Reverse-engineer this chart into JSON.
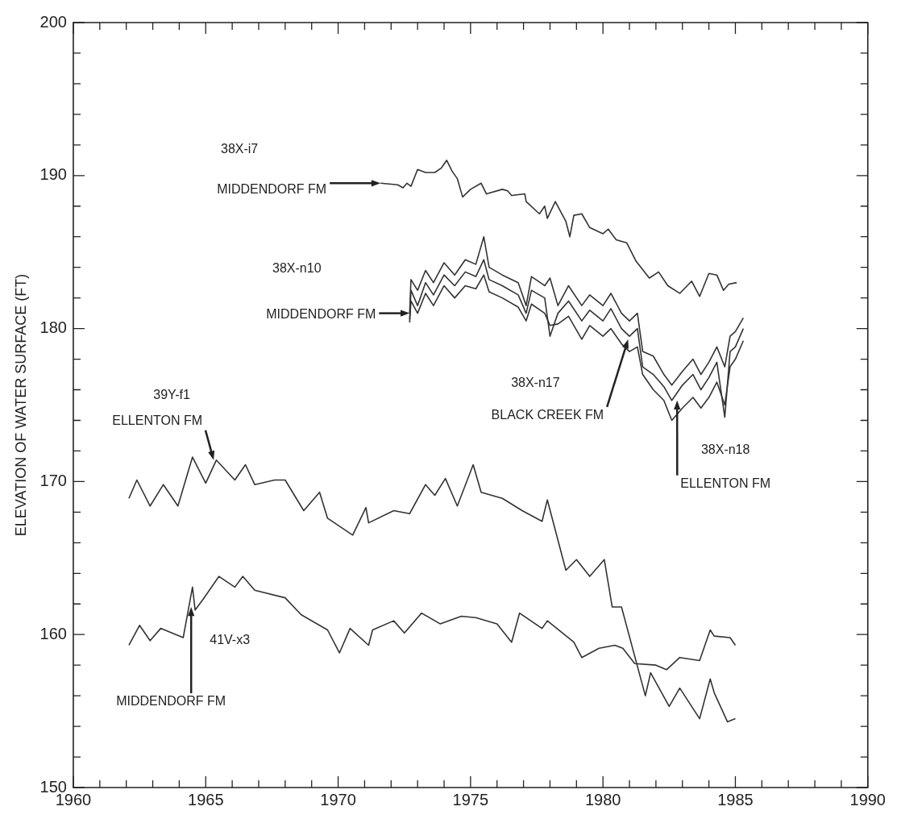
{
  "chart_data": {
    "type": "line",
    "ylabel": "ELEVATION OF WATER SURFACE (FT)",
    "xlim": [
      1960,
      1990
    ],
    "ylim": [
      150,
      200
    ],
    "xticks": [
      1960,
      {
        "value": 1961,
        "label": null
      },
      {
        "value": 1962,
        "label": null
      },
      {
        "value": 1963,
        "label": null
      },
      {
        "value": 1964,
        "label": null
      },
      1965,
      {
        "value": 1966,
        "label": null
      },
      {
        "value": 1967,
        "label": null
      },
      {
        "value": 1968,
        "label": null
      },
      {
        "value": 1969,
        "label": null
      },
      1970,
      {
        "value": 1971,
        "label": null
      },
      {
        "value": 1972,
        "label": null
      },
      {
        "value": 1973,
        "label": null
      },
      {
        "value": 1974,
        "label": null
      },
      1975,
      {
        "value": 1976,
        "label": null
      },
      {
        "value": 1977,
        "label": null
      },
      {
        "value": 1978,
        "label": null
      },
      {
        "value": 1979,
        "label": null
      },
      1980,
      {
        "value": 1981,
        "label": null
      },
      {
        "value": 1982,
        "label": null
      },
      {
        "value": 1983,
        "label": null
      },
      {
        "value": 1984,
        "label": null
      },
      1985,
      {
        "value": 1986,
        "label": null
      },
      {
        "value": 1987,
        "label": null
      },
      {
        "value": 1988,
        "label": null
      },
      {
        "value": 1989,
        "label": null
      },
      1990
    ],
    "yticks": [
      150,
      {
        "value": 152,
        "label": null
      },
      {
        "value": 154,
        "label": null
      },
      {
        "value": 156,
        "label": null
      },
      {
        "value": 158,
        "label": null
      },
      160,
      {
        "value": 162,
        "label": null
      },
      {
        "value": 164,
        "label": null
      },
      {
        "value": 166,
        "label": null
      },
      {
        "value": 168,
        "label": null
      },
      170,
      {
        "value": 172,
        "label": null
      },
      {
        "value": 174,
        "label": null
      },
      {
        "value": 176,
        "label": null
      },
      {
        "value": 178,
        "label": null
      },
      180,
      {
        "value": 182,
        "label": null
      },
      {
        "value": 184,
        "label": null
      },
      {
        "value": 186,
        "label": null
      },
      {
        "value": 188,
        "label": null
      },
      190,
      {
        "value": 192,
        "label": null
      },
      {
        "value": 194,
        "label": null
      },
      {
        "value": 196,
        "label": null
      },
      {
        "value": 198,
        "label": null
      },
      200
    ],
    "grid": false,
    "legend": false,
    "marker": "none",
    "line_style": "solid",
    "series": [
      {
        "color": "#333333",
        "x": [
          1971.6,
          1972.25,
          1972.45,
          1972.6,
          1972.75,
          1973.0,
          1973.3,
          1973.65,
          1973.9,
          1974.1,
          1974.3,
          1974.5,
          1974.7,
          1975.0,
          1975.4,
          1975.6,
          1976.2,
          1976.4,
          1976.55,
          1977.05,
          1977.1,
          1977.6,
          1977.8,
          1977.9,
          1978.2,
          1978.6,
          1978.75,
          1978.9,
          1979.2,
          1979.5,
          1980.0,
          1980.2,
          1980.5,
          1980.9,
          1981.25,
          1981.75,
          1982.1,
          1982.45,
          1982.9,
          1983.35,
          1983.65,
          1984.0,
          1984.3,
          1984.55,
          1984.75,
          1985.05
        ],
        "values": [
          189.5,
          189.4,
          189.2,
          189.5,
          189.3,
          190.4,
          190.2,
          190.2,
          190.5,
          191.0,
          190.3,
          189.8,
          188.6,
          189.1,
          189.5,
          188.8,
          189.1,
          189.0,
          188.7,
          188.8,
          188.3,
          187.5,
          188.0,
          187.2,
          188.3,
          187.0,
          186.0,
          187.4,
          187.5,
          186.6,
          186.2,
          186.5,
          185.8,
          185.6,
          184.4,
          183.3,
          183.7,
          182.8,
          182.3,
          183.1,
          182.1,
          183.6,
          183.5,
          182.5,
          182.9,
          183.0
        ]
      },
      {
        "color": "#333333",
        "x": [
          1972.7,
          1972.75,
          1973.0,
          1973.3,
          1973.6,
          1974.0,
          1974.4,
          1974.8,
          1975.2,
          1975.5,
          1975.7,
          1976.2,
          1976.8,
          1977.1,
          1977.3,
          1977.8,
          1978.0,
          1978.3,
          1978.7,
          1979.2,
          1979.5,
          1980.0,
          1980.3,
          1980.7,
          1981.0,
          1981.3,
          1981.5,
          1981.9,
          1982.3,
          1982.6,
          1983.0,
          1983.4,
          1983.7,
          1984.0,
          1984.3,
          1984.6,
          1984.8,
          1985.0,
          1985.3
        ],
        "values": [
          181.0,
          183.2,
          182.5,
          183.8,
          183.0,
          184.3,
          183.5,
          184.5,
          184.2,
          186.0,
          184.0,
          183.5,
          183.0,
          181.5,
          183.4,
          182.8,
          183.3,
          181.5,
          182.8,
          181.5,
          182.2,
          181.5,
          182.3,
          181.0,
          180.5,
          181.0,
          178.5,
          178.2,
          177.0,
          176.3,
          177.2,
          178.0,
          177.0,
          177.8,
          178.8,
          177.5,
          179.5,
          179.8,
          180.7
        ]
      },
      {
        "color": "#333333",
        "x": [
          1972.7,
          1972.75,
          1973.0,
          1973.3,
          1973.6,
          1974.0,
          1974.4,
          1974.8,
          1975.2,
          1975.5,
          1975.7,
          1976.2,
          1976.8,
          1977.1,
          1977.3,
          1977.8,
          1978.0,
          1978.3,
          1978.7,
          1979.2,
          1979.5,
          1980.0,
          1980.3,
          1980.7,
          1981.0,
          1981.3,
          1981.5,
          1981.9,
          1982.3,
          1982.6,
          1983.0,
          1983.4,
          1983.7,
          1984.0,
          1984.3,
          1984.6,
          1984.8,
          1985.0,
          1985.3
        ],
        "values": [
          180.6,
          182.5,
          181.5,
          183.0,
          182.2,
          183.5,
          182.8,
          183.7,
          183.4,
          184.5,
          183.2,
          182.8,
          182.2,
          181.0,
          182.5,
          182.0,
          179.5,
          181.0,
          181.8,
          180.5,
          181.2,
          180.5,
          181.3,
          180.0,
          179.5,
          180.0,
          177.5,
          177.0,
          176.2,
          175.3,
          176.3,
          177.0,
          176.0,
          176.8,
          177.8,
          174.2,
          178.5,
          178.8,
          180.0
        ]
      },
      {
        "color": "#333333",
        "x": [
          1972.7,
          1972.75,
          1973.0,
          1973.3,
          1973.6,
          1974.0,
          1974.4,
          1974.8,
          1975.2,
          1975.5,
          1975.7,
          1976.2,
          1976.8,
          1977.1,
          1977.3,
          1977.8,
          1978.0,
          1978.3,
          1978.7,
          1979.2,
          1979.5,
          1980.0,
          1980.3,
          1980.7,
          1981.0,
          1981.3,
          1981.5,
          1981.9,
          1982.3,
          1982.6,
          1983.0,
          1983.4,
          1983.7,
          1984.0,
          1984.3,
          1984.6,
          1984.8,
          1985.0,
          1985.3
        ],
        "values": [
          180.4,
          181.8,
          181.0,
          182.3,
          181.5,
          182.8,
          182.0,
          182.8,
          182.6,
          183.5,
          182.4,
          182.0,
          181.4,
          180.5,
          181.6,
          181.0,
          180.2,
          180.3,
          180.8,
          179.3,
          180.2,
          179.5,
          180.0,
          179.0,
          178.5,
          178.8,
          177.0,
          176.0,
          175.3,
          174.0,
          174.8,
          175.5,
          174.8,
          175.5,
          176.5,
          175.0,
          177.5,
          178.0,
          179.2
        ]
      },
      {
        "color": "#333333",
        "x": [
          1962.1,
          1962.4,
          1962.9,
          1963.4,
          1963.95,
          1964.5,
          1965.0,
          1965.4,
          1966.1,
          1966.5,
          1966.85,
          1967.6,
          1968.0,
          1968.7,
          1969.3,
          1969.6,
          1970.55,
          1971.05,
          1971.15,
          1972.1,
          1972.7,
          1973.3,
          1973.65,
          1974.05,
          1974.5,
          1975.1,
          1975.4,
          1976.2,
          1976.95,
          1977.7,
          1977.9,
          1978.6,
          1979.0,
          1979.5,
          1980.05,
          1980.35,
          1980.7,
          1981.6,
          1981.8,
          1982.5,
          1982.9,
          1983.65,
          1984.05,
          1984.2,
          1984.7,
          1985.0
        ],
        "values": [
          168.9,
          170.1,
          168.4,
          169.8,
          168.4,
          171.6,
          169.9,
          171.4,
          170.1,
          171.1,
          169.8,
          170.1,
          170.1,
          168.1,
          169.3,
          167.6,
          166.5,
          168.3,
          167.3,
          168.1,
          167.9,
          169.8,
          169.1,
          170.2,
          168.4,
          171.1,
          169.3,
          168.9,
          168.1,
          167.4,
          168.8,
          164.2,
          164.9,
          163.8,
          164.9,
          161.8,
          161.8,
          156.0,
          157.5,
          155.3,
          156.5,
          154.5,
          157.1,
          156.2,
          154.3,
          154.5
        ]
      },
      {
        "color": "#333333",
        "x": [
          1962.1,
          1962.5,
          1962.9,
          1963.3,
          1964.15,
          1964.5,
          1964.6,
          1964.9,
          1965.5,
          1966.1,
          1966.4,
          1966.85,
          1968.0,
          1968.6,
          1969.6,
          1970.05,
          1970.45,
          1971.15,
          1971.3,
          1972.1,
          1972.5,
          1973.15,
          1973.85,
          1974.65,
          1975.2,
          1976.0,
          1976.55,
          1976.85,
          1977.7,
          1977.9,
          1978.9,
          1979.2,
          1979.85,
          1980.45,
          1980.75,
          1981.2,
          1982.0,
          1982.4,
          1982.9,
          1983.65,
          1984.05,
          1984.2,
          1984.8,
          1985.0
        ],
        "values": [
          159.3,
          160.6,
          159.6,
          160.4,
          159.8,
          163.1,
          161.6,
          162.3,
          163.8,
          163.1,
          163.8,
          162.9,
          162.4,
          161.3,
          160.3,
          158.8,
          160.4,
          159.3,
          160.3,
          160.9,
          160.1,
          161.4,
          160.7,
          161.2,
          161.1,
          160.7,
          159.5,
          161.4,
          160.4,
          160.9,
          159.5,
          158.5,
          159.1,
          159.3,
          159.1,
          158.1,
          158.0,
          157.7,
          158.5,
          158.3,
          160.3,
          159.9,
          159.8,
          159.3
        ]
      }
    ],
    "annotations": [
      "38X-i7",
      {
        "text": "MIDDENDORF FM",
        "x": 1971.6,
        "y": 189.5
      },
      "38X-n10",
      {
        "text": "MIDDENDORF FM",
        "x": 1972.7,
        "y": 181.0
      },
      "38X-n17",
      {
        "text": "BLACK CREEK FM",
        "x": 1980.95,
        "y": 179.3
      },
      "38X-n18",
      {
        "text": "ELLENTON FM",
        "x": 1982.8,
        "y": 175.3
      },
      "39Y-f1",
      {
        "text": "ELLENTON FM",
        "x": 1965.3,
        "y": 171.4
      },
      "41V-x3",
      {
        "text": "MIDDENDORF FM",
        "x": 1964.45,
        "y": 161.8
      }
    ]
  }
}
